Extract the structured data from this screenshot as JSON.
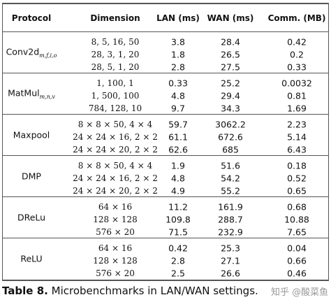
{
  "table": {
    "header": [
      "Protocol",
      "Dimension",
      "LAN (ms)",
      "WAN (ms)",
      "Comm. (MB)"
    ],
    "groups": [
      {
        "protocol": "Conv2d",
        "subscript": "m,f,i,o",
        "rows": [
          [
            "8, 5, 16, 50",
            "3.8",
            "28.4",
            "0.42"
          ],
          [
            "28, 3, 1, 20",
            "1.8",
            "26.5",
            "0.2"
          ],
          [
            "28, 5, 1, 20",
            "2.8",
            "27.5",
            "0.33"
          ]
        ]
      },
      {
        "protocol": "MatMul",
        "subscript": "m,n,v",
        "rows": [
          [
            "1, 100, 1",
            "0.33",
            "25.2",
            "0.0032"
          ],
          [
            "1, 500, 100",
            "4.8",
            "29.4",
            "0.81"
          ],
          [
            "784, 128, 10",
            "9.7",
            "34.3",
            "1.69"
          ]
        ]
      },
      {
        "protocol": "Maxpool",
        "rows": [
          [
            "8 × 8 × 50, 4 × 4",
            "59.7",
            "3062.2",
            "2.23"
          ],
          [
            "24 × 24 × 16, 2 × 2",
            "61.1",
            "672.6",
            "5.14"
          ],
          [
            "24 × 24 × 20, 2 × 2",
            "62.6",
            "685",
            "6.43"
          ]
        ]
      },
      {
        "protocol": "DMP",
        "rows": [
          [
            "8 × 8 × 50, 4 × 4",
            "1.9",
            "51.6",
            "0.18"
          ],
          [
            "24 × 24 × 16, 2 × 2",
            "4.8",
            "54.2",
            "0.52"
          ],
          [
            "24 × 24 × 20, 2 × 2",
            "4.9",
            "55.2",
            "0.65"
          ]
        ]
      },
      {
        "protocol": "DReLu",
        "rows": [
          [
            "64 × 16",
            "11.2",
            "161.9",
            "0.68"
          ],
          [
            "128 × 128",
            "109.8",
            "288.7",
            "10.88"
          ],
          [
            "576 × 20",
            "71.5",
            "232.9",
            "7.65"
          ]
        ]
      },
      {
        "protocol": "ReLU",
        "rows": [
          [
            "64 × 16",
            "0.42",
            "25.3",
            "0.04"
          ],
          [
            "128 × 128",
            "2.8",
            "27.1",
            "0.66"
          ],
          [
            "576 × 20",
            "2.5",
            "26.6",
            "0.46"
          ]
        ]
      }
    ]
  },
  "caption": {
    "label": "Table 8.",
    "text": "Microbenchmarks in LAN/WAN settings."
  },
  "watermark": "知乎 @酸菜鱼"
}
